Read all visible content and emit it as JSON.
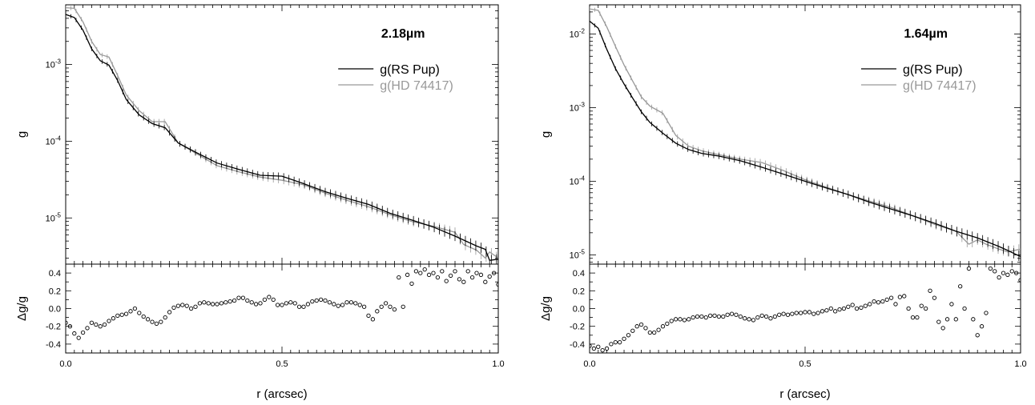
{
  "chart_data": [
    {
      "type": "line",
      "title": "2.18µm",
      "xlabel": "r (arcsec)",
      "ylabel": "g",
      "ylabel_residual": "Δg/g",
      "xlim": [
        0,
        1
      ],
      "ylim": [
        2.5e-06,
        0.006
      ],
      "yscale": "log",
      "residual_ylim": [
        -0.5,
        0.5
      ],
      "x_ticks": [
        "0.0",
        "0.5",
        "1.0"
      ],
      "y_ticks": [
        "10-3",
        "10-4",
        "10-5"
      ],
      "residual_ticks": [
        "0.4",
        "0.2",
        "0.0",
        "-0.2",
        "-0.4"
      ],
      "legend_position": "upper-right",
      "colors": {
        "RS Pup": "#000000",
        "HD 74417": "#999999"
      },
      "series": [
        {
          "name": "g(RS Pup)",
          "x": [
            0.0,
            0.02,
            0.04,
            0.06,
            0.08,
            0.1,
            0.12,
            0.14,
            0.17,
            0.2,
            0.23,
            0.26,
            0.3,
            0.35,
            0.4,
            0.45,
            0.5,
            0.55,
            0.6,
            0.65,
            0.7,
            0.75,
            0.8,
            0.85,
            0.9,
            0.95,
            0.97,
            0.98,
            1.0
          ],
          "y": [
            0.0045,
            0.0041,
            0.0028,
            0.0016,
            0.00112,
            0.00098,
            0.00062,
            0.00035,
            0.00022,
            0.00017,
            0.00015,
            9.5e-05,
            7.2e-05,
            5.2e-05,
            4.3e-05,
            3.6e-05,
            3.5e-05,
            2.8e-05,
            2.2e-05,
            1.8e-05,
            1.5e-05,
            1.15e-05,
            9.4e-06,
            7.6e-06,
            5.8e-06,
            4.3e-06,
            3.9e-06,
            2.8e-06,
            2.9e-06
          ]
        },
        {
          "name": "g(HD 74417)",
          "x": [
            0.0,
            0.02,
            0.04,
            0.06,
            0.08,
            0.1,
            0.12,
            0.14,
            0.17,
            0.2,
            0.23,
            0.26,
            0.3,
            0.35,
            0.4,
            0.45,
            0.5,
            0.55,
            0.6,
            0.65,
            0.7,
            0.75,
            0.8,
            0.85,
            0.9,
            0.92,
            0.95,
            0.97,
            0.98,
            1.0
          ],
          "y": [
            0.0055,
            0.0054,
            0.0036,
            0.002,
            0.00135,
            0.00125,
            0.00072,
            0.0004,
            0.00025,
            0.00018,
            0.00018,
            9.5e-05,
            7e-05,
            4.8e-05,
            4e-05,
            3.4e-05,
            3.1e-05,
            2.7e-05,
            2.1e-05,
            1.7e-05,
            1.4e-05,
            1.1e-05,
            9e-06,
            7.8e-06,
            6.5e-06,
            4.5e-06,
            3.8e-06,
            3e-06,
            3.6e-06,
            3e-06
          ]
        }
      ],
      "residuals": {
        "x": [
          0.0,
          0.01,
          0.02,
          0.03,
          0.04,
          0.05,
          0.06,
          0.07,
          0.08,
          0.09,
          0.1,
          0.11,
          0.12,
          0.13,
          0.14,
          0.15,
          0.16,
          0.17,
          0.18,
          0.19,
          0.2,
          0.21,
          0.22,
          0.23,
          0.24,
          0.25,
          0.26,
          0.27,
          0.28,
          0.29,
          0.3,
          0.31,
          0.32,
          0.33,
          0.34,
          0.35,
          0.36,
          0.37,
          0.38,
          0.39,
          0.4,
          0.41,
          0.42,
          0.43,
          0.44,
          0.45,
          0.46,
          0.47,
          0.48,
          0.49,
          0.5,
          0.51,
          0.52,
          0.53,
          0.54,
          0.55,
          0.56,
          0.57,
          0.58,
          0.59,
          0.6,
          0.61,
          0.62,
          0.63,
          0.64,
          0.65,
          0.66,
          0.67,
          0.68,
          0.69,
          0.7,
          0.71,
          0.72,
          0.73,
          0.74,
          0.75,
          0.76,
          0.77,
          0.78,
          0.79,
          0.8,
          0.81,
          0.82,
          0.83,
          0.84,
          0.85,
          0.86,
          0.87,
          0.88,
          0.89,
          0.9,
          0.91,
          0.92,
          0.93,
          0.94,
          0.95,
          0.96,
          0.97,
          0.98,
          0.99,
          1.0
        ],
        "y": [
          -0.16,
          -0.2,
          -0.28,
          -0.33,
          -0.27,
          -0.22,
          -0.16,
          -0.18,
          -0.2,
          -0.18,
          -0.14,
          -0.11,
          -0.08,
          -0.07,
          -0.06,
          -0.03,
          0.0,
          -0.05,
          -0.09,
          -0.12,
          -0.15,
          -0.17,
          -0.15,
          -0.1,
          -0.04,
          0.01,
          0.03,
          0.04,
          0.03,
          0.0,
          0.02,
          0.06,
          0.07,
          0.06,
          0.05,
          0.05,
          0.06,
          0.07,
          0.08,
          0.09,
          0.12,
          0.12,
          0.09,
          0.07,
          0.05,
          0.06,
          0.1,
          0.13,
          0.1,
          0.04,
          0.04,
          0.06,
          0.07,
          0.06,
          0.02,
          0.02,
          0.05,
          0.08,
          0.09,
          0.1,
          0.09,
          0.07,
          0.05,
          0.03,
          0.04,
          0.07,
          0.07,
          0.06,
          0.04,
          0.02,
          -0.08,
          -0.12,
          -0.03,
          0.02,
          0.06,
          0.02,
          -0.01,
          0.35,
          0.02,
          0.38,
          0.28,
          0.42,
          0.4,
          0.44,
          0.38,
          0.4,
          0.35,
          0.42,
          0.31,
          0.37,
          0.42,
          0.33,
          0.3,
          0.42,
          0.35,
          0.4,
          0.38,
          0.3,
          0.36,
          0.4,
          0.27
        ]
      }
    },
    {
      "type": "line",
      "title": "1.64µm",
      "xlabel": "r (arcsec)",
      "ylabel": "g",
      "ylabel_residual": "Δg/g",
      "xlim": [
        0,
        1
      ],
      "ylim": [
        7.5e-06,
        0.025
      ],
      "yscale": "log",
      "residual_ylim": [
        -0.5,
        0.5
      ],
      "x_ticks": [
        "0.0",
        "0.5",
        "1.0"
      ],
      "y_ticks": [
        "10-2",
        "10-3",
        "10-4",
        "10-5"
      ],
      "residual_ticks": [
        "0.4",
        "0.2",
        "0.0",
        "-0.2",
        "-0.4"
      ],
      "legend_position": "upper-right",
      "colors": {
        "RS Pup": "#000000",
        "HD 74417": "#999999"
      },
      "series": [
        {
          "name": "g(RS Pup)",
          "x": [
            0.0,
            0.02,
            0.04,
            0.06,
            0.08,
            0.1,
            0.12,
            0.14,
            0.17,
            0.2,
            0.23,
            0.26,
            0.3,
            0.35,
            0.4,
            0.45,
            0.5,
            0.55,
            0.6,
            0.65,
            0.7,
            0.75,
            0.8,
            0.85,
            0.9,
            0.95,
            0.97,
            1.0
          ],
          "y": [
            0.015,
            0.012,
            0.0062,
            0.0034,
            0.0021,
            0.00135,
            0.00088,
            0.00063,
            0.00045,
            0.00033,
            0.00027,
            0.00024,
            0.00022,
            0.00019,
            0.000155,
            0.000125,
            0.0001,
            8.1e-05,
            6.6e-05,
            5.2e-05,
            4.2e-05,
            3.4e-05,
            2.7e-05,
            2.1e-05,
            1.7e-05,
            1.3e-05,
            1.15e-05,
            9.5e-06
          ]
        },
        {
          "name": "g(HD 74417)",
          "x": [
            0.0,
            0.02,
            0.04,
            0.06,
            0.08,
            0.1,
            0.12,
            0.14,
            0.17,
            0.2,
            0.23,
            0.26,
            0.3,
            0.35,
            0.4,
            0.45,
            0.5,
            0.55,
            0.6,
            0.65,
            0.7,
            0.75,
            0.8,
            0.85,
            0.88,
            0.9,
            0.92,
            0.95,
            0.97,
            1.0
          ],
          "y": [
            0.022,
            0.021,
            0.0125,
            0.0068,
            0.0038,
            0.0023,
            0.0014,
            0.00105,
            0.00084,
            0.00042,
            0.0003,
            0.00026,
            0.00023,
            0.0002,
            0.00018,
            0.00014,
            0.000105,
            8.3e-05,
            6.6e-05,
            5.4e-05,
            4.4e-05,
            3.4e-05,
            2.6e-05,
            2.1e-05,
            1.4e-05,
            1.6e-05,
            1.4e-05,
            1.2e-05,
            1.1e-05,
            1.2e-05
          ]
        }
      ],
      "residuals": {
        "x": [
          0.0,
          0.01,
          0.02,
          0.03,
          0.04,
          0.05,
          0.06,
          0.07,
          0.08,
          0.09,
          0.1,
          0.11,
          0.12,
          0.13,
          0.14,
          0.15,
          0.16,
          0.17,
          0.18,
          0.19,
          0.2,
          0.21,
          0.22,
          0.23,
          0.24,
          0.25,
          0.26,
          0.27,
          0.28,
          0.29,
          0.3,
          0.31,
          0.32,
          0.33,
          0.34,
          0.35,
          0.36,
          0.37,
          0.38,
          0.39,
          0.4,
          0.41,
          0.42,
          0.43,
          0.44,
          0.45,
          0.46,
          0.47,
          0.48,
          0.49,
          0.5,
          0.51,
          0.52,
          0.53,
          0.54,
          0.55,
          0.56,
          0.57,
          0.58,
          0.59,
          0.6,
          0.61,
          0.62,
          0.63,
          0.64,
          0.65,
          0.66,
          0.67,
          0.68,
          0.69,
          0.7,
          0.71,
          0.72,
          0.73,
          0.74,
          0.75,
          0.76,
          0.77,
          0.78,
          0.79,
          0.8,
          0.81,
          0.82,
          0.83,
          0.84,
          0.85,
          0.86,
          0.87,
          0.88,
          0.89,
          0.9,
          0.91,
          0.92,
          0.93,
          0.94,
          0.95,
          0.96,
          0.97,
          0.98,
          0.99,
          1.0
        ],
        "y": [
          -0.42,
          -0.45,
          -0.43,
          -0.47,
          -0.45,
          -0.4,
          -0.38,
          -0.38,
          -0.34,
          -0.3,
          -0.25,
          -0.2,
          -0.18,
          -0.22,
          -0.27,
          -0.27,
          -0.24,
          -0.2,
          -0.17,
          -0.14,
          -0.12,
          -0.12,
          -0.13,
          -0.12,
          -0.1,
          -0.09,
          -0.09,
          -0.1,
          -0.08,
          -0.08,
          -0.09,
          -0.09,
          -0.07,
          -0.06,
          -0.07,
          -0.09,
          -0.11,
          -0.12,
          -0.13,
          -0.1,
          -0.08,
          -0.09,
          -0.11,
          -0.09,
          -0.07,
          -0.06,
          -0.07,
          -0.06,
          -0.05,
          -0.05,
          -0.04,
          -0.04,
          -0.06,
          -0.05,
          -0.03,
          -0.02,
          0.0,
          -0.03,
          -0.01,
          0.0,
          0.02,
          0.04,
          0.0,
          0.01,
          0.03,
          0.05,
          0.08,
          0.07,
          0.08,
          0.1,
          0.12,
          0.05,
          0.13,
          0.14,
          0.0,
          -0.1,
          -0.1,
          0.03,
          0.0,
          0.2,
          0.12,
          -0.15,
          -0.22,
          -0.12,
          0.05,
          -0.12,
          0.25,
          0.0,
          0.45,
          -0.12,
          -0.3,
          -0.2,
          -0.05,
          0.45,
          0.42,
          0.35,
          0.4,
          0.38,
          0.42,
          0.4,
          0.32
        ]
      }
    }
  ]
}
